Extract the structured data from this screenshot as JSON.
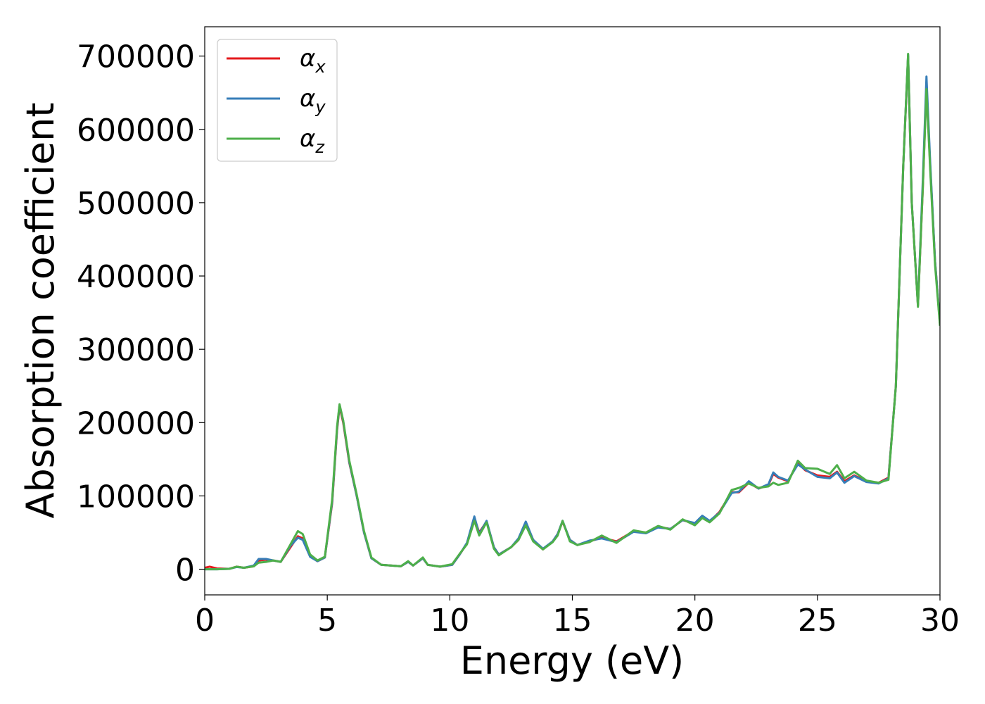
{
  "chart_data": {
    "type": "line",
    "xlabel": "Energy (eV)",
    "ylabel": "Absorption coefficient",
    "xlim": [
      0,
      30
    ],
    "ylim": [
      -35000,
      740000
    ],
    "grid": false,
    "legend_position": "top-left",
    "x_ticks": [
      0,
      5,
      10,
      15,
      20,
      25,
      30
    ],
    "x_tick_labels": [
      "0",
      "5",
      "10",
      "15",
      "20",
      "25",
      "30"
    ],
    "y_ticks": [
      0,
      100000,
      200000,
      300000,
      400000,
      500000,
      600000,
      700000
    ],
    "y_tick_labels": [
      "0",
      "100000",
      "200000",
      "300000",
      "400000",
      "500000",
      "600000",
      "700000"
    ],
    "series": [
      {
        "name": "αx",
        "name_base": "α",
        "name_sub": "x",
        "color": "#e41a1c",
        "points": [
          [
            0,
            2000
          ],
          [
            0.2,
            3500
          ],
          [
            0.5,
            1000
          ],
          [
            1,
            500
          ],
          [
            1.3,
            3500
          ],
          [
            1.6,
            2000
          ],
          [
            2,
            4000
          ],
          [
            2.2,
            12000
          ],
          [
            2.5,
            13000
          ],
          [
            2.8,
            12000
          ],
          [
            3.1,
            10000
          ],
          [
            3.5,
            30000
          ],
          [
            3.8,
            45000
          ],
          [
            4.0,
            42000
          ],
          [
            4.3,
            18000
          ],
          [
            4.6,
            11000
          ],
          [
            4.9,
            16000
          ],
          [
            5.2,
            90000
          ],
          [
            5.4,
            190000
          ],
          [
            5.5,
            222000
          ],
          [
            5.65,
            200000
          ],
          [
            5.9,
            145000
          ],
          [
            6.2,
            100000
          ],
          [
            6.5,
            50000
          ],
          [
            6.8,
            15000
          ],
          [
            7.2,
            6000
          ],
          [
            8.0,
            4000
          ],
          [
            8.3,
            10000
          ],
          [
            8.5,
            5000
          ],
          [
            8.9,
            15000
          ],
          [
            9.1,
            6000
          ],
          [
            9.6,
            3500
          ],
          [
            10.1,
            6000
          ],
          [
            10.4,
            20000
          ],
          [
            10.7,
            35000
          ],
          [
            11.0,
            70000
          ],
          [
            11.2,
            50000
          ],
          [
            11.5,
            65000
          ],
          [
            11.8,
            30000
          ],
          [
            12.0,
            20000
          ],
          [
            12.5,
            30000
          ],
          [
            12.8,
            40000
          ],
          [
            13.1,
            63000
          ],
          [
            13.4,
            40000
          ],
          [
            13.8,
            27000
          ],
          [
            14.2,
            38000
          ],
          [
            14.4,
            48000
          ],
          [
            14.6,
            65000
          ],
          [
            14.9,
            40000
          ],
          [
            15.2,
            33000
          ],
          [
            15.7,
            38000
          ],
          [
            16.2,
            43000
          ],
          [
            16.8,
            38000
          ],
          [
            17.5,
            52000
          ],
          [
            18.0,
            50000
          ],
          [
            18.5,
            58000
          ],
          [
            19.0,
            55000
          ],
          [
            19.5,
            67000
          ],
          [
            20.0,
            62000
          ],
          [
            20.3,
            72000
          ],
          [
            20.6,
            65000
          ],
          [
            21.0,
            78000
          ],
          [
            21.5,
            105000
          ],
          [
            21.8,
            105000
          ],
          [
            22.2,
            118000
          ],
          [
            22.6,
            110000
          ],
          [
            23.0,
            115000
          ],
          [
            23.2,
            130000
          ],
          [
            23.4,
            125000
          ],
          [
            23.8,
            120000
          ],
          [
            24.2,
            145000
          ],
          [
            24.5,
            135000
          ],
          [
            25.0,
            128000
          ],
          [
            25.5,
            126000
          ],
          [
            25.8,
            133000
          ],
          [
            26.1,
            120000
          ],
          [
            26.5,
            128000
          ],
          [
            27.0,
            120000
          ],
          [
            27.5,
            118000
          ],
          [
            27.9,
            125000
          ],
          [
            28.2,
            250000
          ],
          [
            28.5,
            550000
          ],
          [
            28.7,
            700000
          ],
          [
            28.85,
            500000
          ],
          [
            29.1,
            360000
          ],
          [
            29.3,
            520000
          ],
          [
            29.45,
            660000
          ],
          [
            29.6,
            550000
          ],
          [
            29.8,
            420000
          ],
          [
            30.0,
            335000
          ]
        ]
      },
      {
        "name": "αy",
        "name_base": "α",
        "name_sub": "y",
        "color": "#377eb8",
        "points": [
          [
            0,
            0
          ],
          [
            0.5,
            0
          ],
          [
            1,
            500
          ],
          [
            1.3,
            3000
          ],
          [
            1.6,
            2000
          ],
          [
            2,
            5000
          ],
          [
            2.2,
            14000
          ],
          [
            2.5,
            14000
          ],
          [
            2.8,
            12000
          ],
          [
            3.1,
            10000
          ],
          [
            3.5,
            32000
          ],
          [
            3.8,
            43000
          ],
          [
            4.0,
            40000
          ],
          [
            4.3,
            17000
          ],
          [
            4.6,
            11000
          ],
          [
            4.9,
            16000
          ],
          [
            5.2,
            92000
          ],
          [
            5.4,
            192000
          ],
          [
            5.5,
            224000
          ],
          [
            5.65,
            202000
          ],
          [
            5.9,
            146000
          ],
          [
            6.2,
            100000
          ],
          [
            6.5,
            50000
          ],
          [
            6.8,
            15000
          ],
          [
            7.2,
            6000
          ],
          [
            8.0,
            4000
          ],
          [
            8.3,
            10000
          ],
          [
            8.5,
            5000
          ],
          [
            8.9,
            15000
          ],
          [
            9.1,
            6000
          ],
          [
            9.6,
            3500
          ],
          [
            10.1,
            6000
          ],
          [
            10.4,
            20000
          ],
          [
            10.7,
            36000
          ],
          [
            11.0,
            72000
          ],
          [
            11.2,
            48000
          ],
          [
            11.5,
            66000
          ],
          [
            11.8,
            30000
          ],
          [
            12.0,
            20000
          ],
          [
            12.5,
            30000
          ],
          [
            12.8,
            42000
          ],
          [
            13.1,
            65000
          ],
          [
            13.4,
            40000
          ],
          [
            13.8,
            28000
          ],
          [
            14.2,
            38000
          ],
          [
            14.4,
            48000
          ],
          [
            14.6,
            66000
          ],
          [
            14.9,
            40000
          ],
          [
            15.2,
            33000
          ],
          [
            15.7,
            39000
          ],
          [
            16.2,
            42000
          ],
          [
            16.8,
            37000
          ],
          [
            17.5,
            51000
          ],
          [
            18.0,
            49000
          ],
          [
            18.5,
            57000
          ],
          [
            19.0,
            55000
          ],
          [
            19.5,
            67000
          ],
          [
            20.0,
            63000
          ],
          [
            20.3,
            73000
          ],
          [
            20.6,
            66000
          ],
          [
            21.0,
            77000
          ],
          [
            21.5,
            104000
          ],
          [
            21.8,
            106000
          ],
          [
            22.2,
            120000
          ],
          [
            22.6,
            110000
          ],
          [
            23.0,
            116000
          ],
          [
            23.2,
            132000
          ],
          [
            23.4,
            126000
          ],
          [
            23.8,
            121000
          ],
          [
            24.2,
            143000
          ],
          [
            24.5,
            136000
          ],
          [
            25.0,
            126000
          ],
          [
            25.5,
            124000
          ],
          [
            25.8,
            132000
          ],
          [
            26.1,
            118000
          ],
          [
            26.5,
            127000
          ],
          [
            27.0,
            119000
          ],
          [
            27.5,
            117000
          ],
          [
            27.9,
            124000
          ],
          [
            28.2,
            250000
          ],
          [
            28.5,
            550000
          ],
          [
            28.7,
            702000
          ],
          [
            28.85,
            500000
          ],
          [
            29.1,
            360000
          ],
          [
            29.3,
            530000
          ],
          [
            29.45,
            672000
          ],
          [
            29.6,
            555000
          ],
          [
            29.8,
            420000
          ],
          [
            30.0,
            335000
          ]
        ]
      },
      {
        "name": "αz",
        "name_base": "α",
        "name_sub": "z",
        "color": "#4daf4a",
        "points": [
          [
            0,
            0
          ],
          [
            0.5,
            0
          ],
          [
            1,
            500
          ],
          [
            1.3,
            3500
          ],
          [
            1.6,
            2000
          ],
          [
            2,
            4000
          ],
          [
            2.2,
            9000
          ],
          [
            2.5,
            10000
          ],
          [
            2.8,
            12000
          ],
          [
            3.1,
            10000
          ],
          [
            3.5,
            34000
          ],
          [
            3.8,
            52000
          ],
          [
            4.0,
            48000
          ],
          [
            4.3,
            20000
          ],
          [
            4.6,
            12000
          ],
          [
            4.9,
            17000
          ],
          [
            5.2,
            95000
          ],
          [
            5.4,
            195000
          ],
          [
            5.5,
            225000
          ],
          [
            5.65,
            203000
          ],
          [
            5.9,
            148000
          ],
          [
            6.2,
            102000
          ],
          [
            6.5,
            52000
          ],
          [
            6.8,
            16000
          ],
          [
            7.2,
            6000
          ],
          [
            8.0,
            4000
          ],
          [
            8.3,
            11000
          ],
          [
            8.5,
            5000
          ],
          [
            8.9,
            16000
          ],
          [
            9.1,
            6000
          ],
          [
            9.6,
            3500
          ],
          [
            10.1,
            7000
          ],
          [
            10.4,
            21000
          ],
          [
            10.7,
            34000
          ],
          [
            11.0,
            66000
          ],
          [
            11.2,
            46000
          ],
          [
            11.5,
            64000
          ],
          [
            11.8,
            28000
          ],
          [
            12.0,
            19000
          ],
          [
            12.5,
            30000
          ],
          [
            12.8,
            40000
          ],
          [
            13.1,
            60000
          ],
          [
            13.4,
            38000
          ],
          [
            13.8,
            27000
          ],
          [
            14.2,
            37000
          ],
          [
            14.4,
            46000
          ],
          [
            14.6,
            66000
          ],
          [
            14.9,
            38000
          ],
          [
            15.2,
            33000
          ],
          [
            15.7,
            37000
          ],
          [
            16.2,
            46000
          ],
          [
            16.8,
            36000
          ],
          [
            17.5,
            53000
          ],
          [
            18.0,
            50000
          ],
          [
            18.5,
            59000
          ],
          [
            19.0,
            54000
          ],
          [
            19.5,
            68000
          ],
          [
            20.0,
            60000
          ],
          [
            20.3,
            70000
          ],
          [
            20.6,
            64000
          ],
          [
            21.0,
            76000
          ],
          [
            21.5,
            108000
          ],
          [
            21.8,
            111000
          ],
          [
            22.2,
            117000
          ],
          [
            22.6,
            111000
          ],
          [
            23.0,
            113000
          ],
          [
            23.2,
            118000
          ],
          [
            23.4,
            115000
          ],
          [
            23.8,
            118000
          ],
          [
            24.2,
            148000
          ],
          [
            24.5,
            138000
          ],
          [
            25.0,
            137000
          ],
          [
            25.5,
            130000
          ],
          [
            25.8,
            142000
          ],
          [
            26.1,
            124000
          ],
          [
            26.5,
            133000
          ],
          [
            27.0,
            121000
          ],
          [
            27.5,
            118000
          ],
          [
            27.9,
            122000
          ],
          [
            28.2,
            250000
          ],
          [
            28.5,
            550000
          ],
          [
            28.7,
            703000
          ],
          [
            28.85,
            500000
          ],
          [
            29.1,
            358000
          ],
          [
            29.3,
            520000
          ],
          [
            29.45,
            655000
          ],
          [
            29.6,
            545000
          ],
          [
            29.8,
            415000
          ],
          [
            30.0,
            332000
          ]
        ]
      }
    ]
  }
}
